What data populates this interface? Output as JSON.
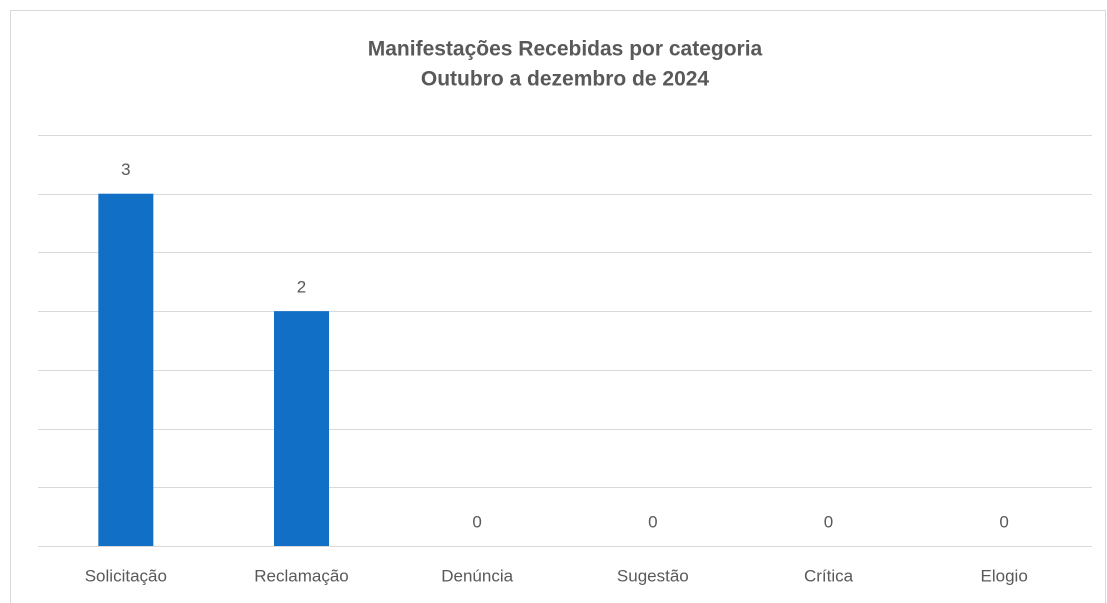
{
  "chart_data": {
    "type": "bar",
    "title": [
      "Manifestações Recebidas por categoria",
      "Outubro a dezembro de 2024"
    ],
    "categories": [
      "Solicitação",
      "Reclamação",
      "Denúncia",
      "Sugestão",
      "Crítica",
      "Elogio"
    ],
    "values": [
      3,
      2,
      0,
      0,
      0,
      0
    ],
    "color": "#1170c6",
    "ylim": [
      0,
      3.5
    ],
    "yticks": [
      0,
      0.5,
      1,
      1.5,
      2,
      2.5,
      3,
      3.5
    ],
    "grid": true
  }
}
